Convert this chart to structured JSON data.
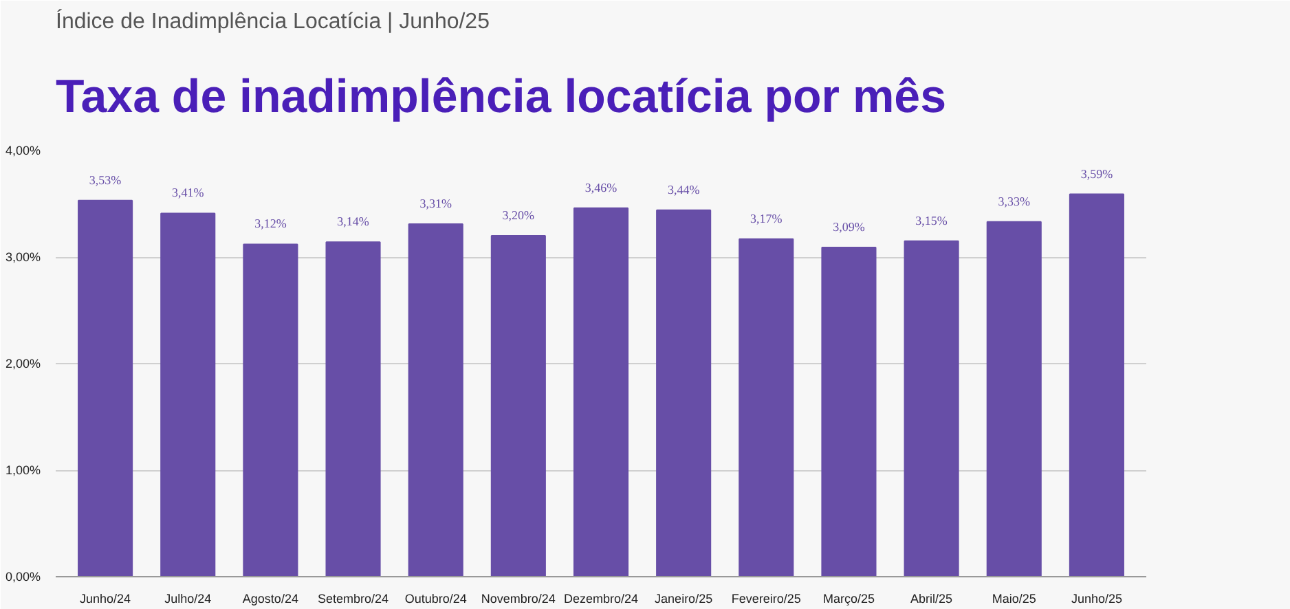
{
  "chart_data": {
    "type": "bar",
    "title": "Taxa de inadimplência locatícia por mês",
    "subtitle": "Índice de Inadimplência Locatícia | Junho/25",
    "categories": [
      "Junho/24",
      "Julho/24",
      "Agosto/24",
      "Setembro/24",
      "Outubro/24",
      "Novembro/24",
      "Dezembro/24",
      "Janeiro/25",
      "Fevereiro/25",
      "Março/25",
      "Abril/25",
      "Maio/25",
      "Junho/25"
    ],
    "values": [
      3.53,
      3.41,
      3.12,
      3.14,
      3.31,
      3.2,
      3.46,
      3.44,
      3.17,
      3.09,
      3.15,
      3.33,
      3.59
    ],
    "value_labels": [
      "3,53%",
      "3,41%",
      "3,12%",
      "3,14%",
      "3,31%",
      "3,20%",
      "3,46%",
      "3,44%",
      "3,17%",
      "3,09%",
      "3,15%",
      "3,33%",
      "3,59%"
    ],
    "color": "#674ea7",
    "ylim": [
      0,
      4
    ],
    "yticks": [
      {
        "value": 0,
        "label": "0,00%"
      },
      {
        "value": 1,
        "label": "1,00%"
      },
      {
        "value": 2,
        "label": "2,00%"
      },
      {
        "value": 3,
        "label": "3,00%"
      },
      {
        "value": 4,
        "label": "4,00%"
      }
    ],
    "grid": "y"
  }
}
